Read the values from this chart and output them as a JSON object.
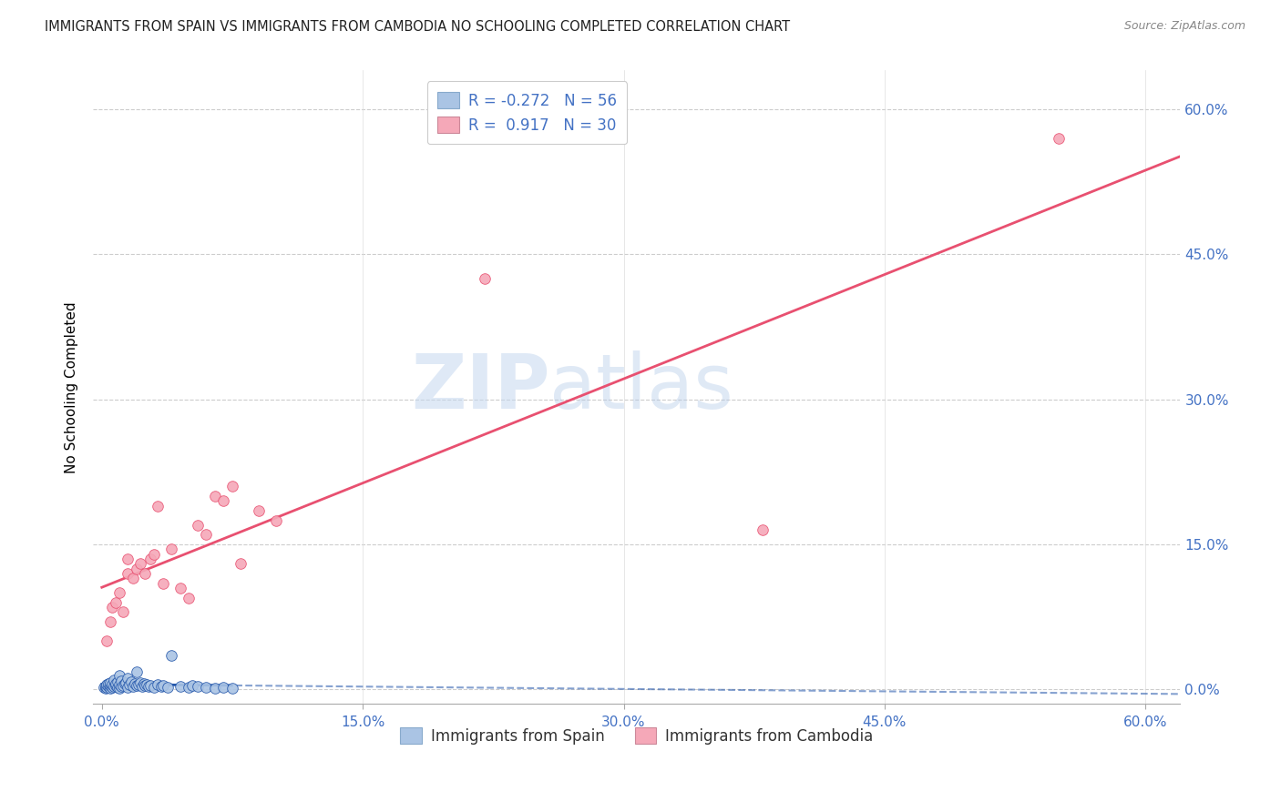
{
  "title": "IMMIGRANTS FROM SPAIN VS IMMIGRANTS FROM CAMBODIA NO SCHOOLING COMPLETED CORRELATION CHART",
  "source": "Source: ZipAtlas.com",
  "ylabel": "No Schooling Completed",
  "ytick_values": [
    0.0,
    15.0,
    30.0,
    45.0,
    60.0
  ],
  "xtick_values": [
    0.0,
    15.0,
    30.0,
    45.0,
    60.0
  ],
  "xlim": [
    -0.5,
    62.0
  ],
  "ylim": [
    -1.5,
    64.0
  ],
  "spain_R": -0.272,
  "spain_N": 56,
  "cambodia_R": 0.917,
  "cambodia_N": 30,
  "spain_color": "#aac4e4",
  "cambodia_color": "#f5a8b8",
  "spain_line_color": "#2255aa",
  "cambodia_line_color": "#e85070",
  "watermark_zip": "ZIP",
  "watermark_atlas": "atlas",
  "legend_spain_label": "Immigrants from Spain",
  "legend_cambodia_label": "Immigrants from Cambodia",
  "spain_scatter_x": [
    0.1,
    0.2,
    0.2,
    0.3,
    0.3,
    0.4,
    0.4,
    0.5,
    0.5,
    0.5,
    0.6,
    0.6,
    0.7,
    0.7,
    0.8,
    0.8,
    0.9,
    0.9,
    1.0,
    1.0,
    1.0,
    1.1,
    1.1,
    1.2,
    1.3,
    1.4,
    1.5,
    1.5,
    1.6,
    1.7,
    1.8,
    1.9,
    2.0,
    2.0,
    2.1,
    2.2,
    2.3,
    2.4,
    2.5,
    2.6,
    2.7,
    2.8,
    3.0,
    3.2,
    3.4,
    3.5,
    3.8,
    4.0,
    4.5,
    5.0,
    5.2,
    5.5,
    6.0,
    6.5,
    7.0,
    7.5
  ],
  "spain_scatter_y": [
    0.2,
    0.1,
    0.3,
    0.2,
    0.5,
    0.3,
    0.6,
    0.1,
    0.4,
    0.7,
    0.2,
    0.5,
    0.3,
    1.0,
    0.4,
    0.6,
    0.2,
    0.8,
    0.1,
    0.5,
    1.5,
    0.3,
    0.9,
    0.4,
    0.6,
    0.7,
    0.2,
    1.2,
    0.5,
    0.8,
    0.3,
    0.6,
    0.4,
    1.8,
    0.5,
    0.7,
    0.3,
    0.6,
    0.4,
    0.5,
    0.3,
    0.4,
    0.2,
    0.5,
    0.3,
    0.4,
    0.2,
    3.5,
    0.3,
    0.2,
    0.4,
    0.3,
    0.2,
    0.1,
    0.2,
    0.1
  ],
  "cambodia_scatter_x": [
    0.3,
    0.5,
    0.6,
    0.8,
    1.0,
    1.2,
    1.5,
    1.5,
    1.8,
    2.0,
    2.2,
    2.5,
    2.8,
    3.0,
    3.2,
    3.5,
    4.0,
    4.5,
    5.0,
    5.5,
    6.0,
    6.5,
    7.0,
    7.5,
    8.0,
    9.0,
    10.0,
    22.0,
    38.0,
    55.0
  ],
  "cambodia_scatter_y": [
    5.0,
    7.0,
    8.5,
    9.0,
    10.0,
    8.0,
    12.0,
    13.5,
    11.5,
    12.5,
    13.0,
    12.0,
    13.5,
    14.0,
    19.0,
    11.0,
    14.5,
    10.5,
    9.5,
    17.0,
    16.0,
    20.0,
    19.5,
    21.0,
    13.0,
    18.5,
    17.5,
    42.5,
    16.5,
    57.0
  ]
}
